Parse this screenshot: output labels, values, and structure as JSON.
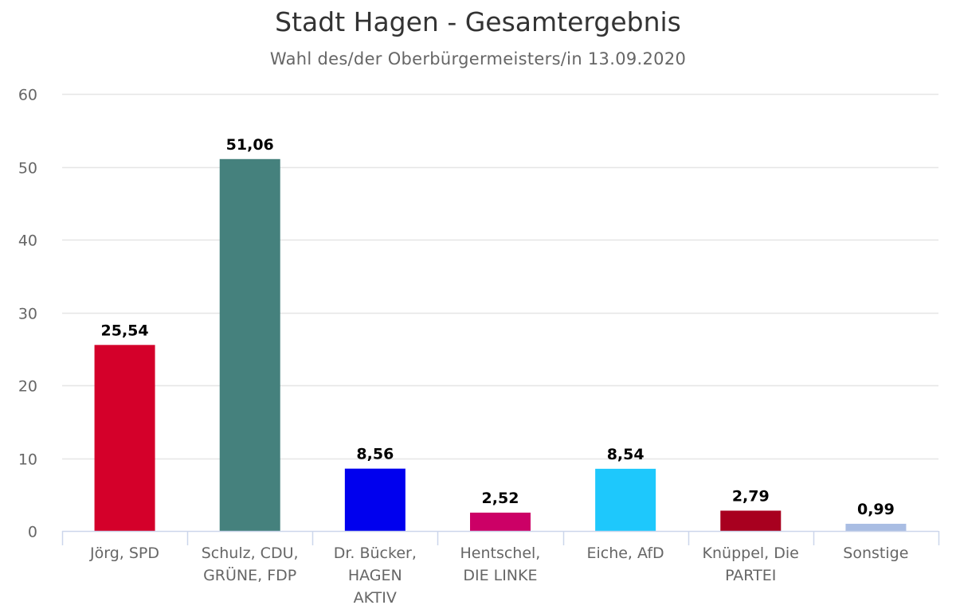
{
  "chart_data": {
    "type": "bar",
    "title": "Stadt Hagen - Gesamtergebnis",
    "subtitle": "Wahl des/der Oberbürgermeisters/in 13.09.2020",
    "xlabel": "",
    "ylabel": "",
    "ylim": [
      0,
      60
    ],
    "yticks": [
      0,
      10,
      20,
      30,
      40,
      50,
      60
    ],
    "grid": true,
    "legend": "none",
    "categories": [
      "Jörg, SPD",
      "Schulz, CDU, GRÜNE, FDP",
      "Dr. Bücker, HAGEN AKTIV",
      "Hentschel, DIE LINKE",
      "Eiche, AfD",
      "Knüppel, Die PARTEI",
      "Sonstige"
    ],
    "category_lines": [
      [
        "Jörg, SPD"
      ],
      [
        "Schulz, CDU,",
        "GRÜNE, FDP"
      ],
      [
        "Dr. Bücker,",
        "HAGEN",
        "AKTIV"
      ],
      [
        "Hentschel,",
        "DIE LINKE"
      ],
      [
        "Eiche, AfD"
      ],
      [
        "Knüppel, Die",
        "PARTEI"
      ],
      [
        "Sonstige"
      ]
    ],
    "values": [
      25.54,
      51.06,
      8.56,
      2.52,
      8.54,
      2.79,
      0.99
    ],
    "value_labels": [
      "25,54",
      "51,06",
      "8,56",
      "2,52",
      "8,54",
      "2,79",
      "0,99"
    ],
    "colors": [
      "#d4002a",
      "#45817d",
      "#0000ee",
      "#cc0066",
      "#1ec8fc",
      "#a8001f",
      "#a9bde3"
    ]
  },
  "colors": {
    "title": "#333333",
    "subtitle": "#666666",
    "grid": "#e6e6e6",
    "axis": "#ccd6eb",
    "tick_label": "#666666",
    "data_label": "#000000"
  }
}
